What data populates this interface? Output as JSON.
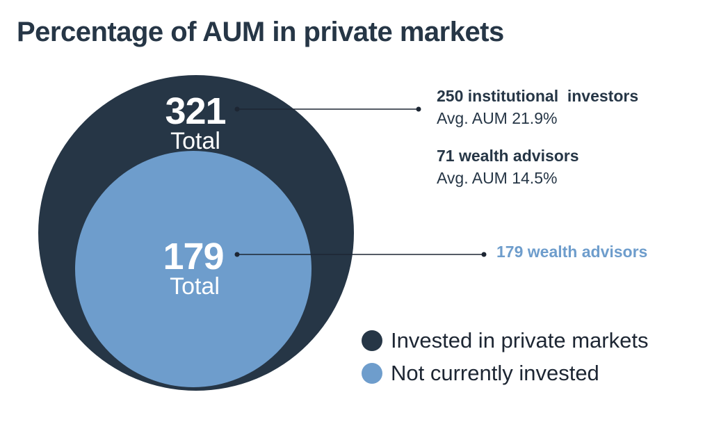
{
  "title": "Percentage of AUM in private markets",
  "colors": {
    "dark": "#263646",
    "light": "#6e9dcc",
    "text": "#263646",
    "background": "#ffffff"
  },
  "chart_data": {
    "type": "nested-circle",
    "circles": [
      {
        "value": 321,
        "value_label": "321",
        "sublabel": "Total",
        "series": "Invested in private markets",
        "color": "#263646"
      },
      {
        "value": 179,
        "value_label": "179",
        "sublabel": "Total",
        "series": "Not currently invested",
        "color": "#6e9dcc"
      }
    ],
    "annotations": {
      "outer": [
        {
          "heading": "250 institutional  investors",
          "detail": "Avg. AUM 21.9%"
        },
        {
          "heading": "71 wealth advisors",
          "detail": "Avg. AUM 14.5%"
        }
      ],
      "inner": [
        {
          "heading": "179 wealth advisors"
        }
      ]
    },
    "legend": [
      {
        "label": "Invested in private markets",
        "color": "#263646"
      },
      {
        "label": "Not currently invested",
        "color": "#6e9dcc"
      }
    ],
    "legend_position": "bottom-right"
  }
}
